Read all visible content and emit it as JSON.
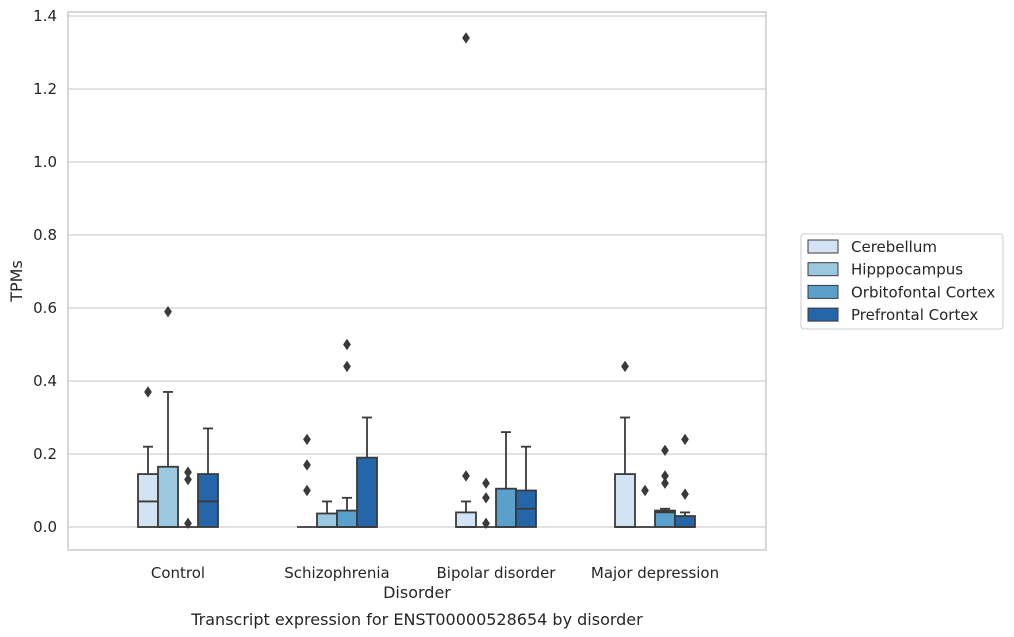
{
  "chart_data": {
    "type": "box",
    "xlabel": "Disorder",
    "ylabel": "TPMs",
    "caption": "Transcript expression for ENST00000528654 by disorder",
    "ylim": [
      -0.062,
      1.41
    ],
    "yticks": [
      0.0,
      0.2,
      0.4,
      0.6,
      0.8,
      1.0,
      1.2,
      1.4
    ],
    "ytick_labels": [
      "0.0",
      "0.2",
      "0.4",
      "0.6",
      "0.8",
      "1.0",
      "1.2",
      "1.4"
    ],
    "grid": "horizontal",
    "legend_position": "right",
    "categories": [
      "Control",
      "Schizophrenia",
      "Bipolar disorder",
      "Major depression"
    ],
    "series": [
      {
        "name": "Cerebellum",
        "color": "#d2e3f3",
        "boxes": [
          {
            "q1": 0.0,
            "median": 0.07,
            "q3": 0.145,
            "whisker_low": 0.0,
            "whisker_high": 0.22,
            "outliers": [
              0.37
            ]
          },
          {
            "q1": 0.0,
            "median": 0.0,
            "q3": 0.0,
            "whisker_low": 0.0,
            "whisker_high": 0.0,
            "outliers": [
              0.24,
              0.17,
              0.1
            ]
          },
          {
            "q1": 0.0,
            "median": 0.0,
            "q3": 0.04,
            "whisker_low": 0.0,
            "whisker_high": 0.07,
            "outliers": [
              1.34,
              0.14
            ]
          },
          {
            "q1": 0.0,
            "median": 0.0,
            "q3": 0.145,
            "whisker_low": 0.0,
            "whisker_high": 0.3,
            "outliers": [
              0.44
            ]
          }
        ]
      },
      {
        "name": "Hipppocampus",
        "color": "#9ac8e0",
        "boxes": [
          {
            "q1": 0.0,
            "median": 0.0,
            "q3": 0.165,
            "whisker_low": 0.0,
            "whisker_high": 0.37,
            "outliers": [
              0.59
            ]
          },
          {
            "q1": 0.0,
            "median": 0.0,
            "q3": 0.037,
            "whisker_low": 0.0,
            "whisker_high": 0.07,
            "outliers": []
          },
          {
            "q1": 0.0,
            "median": 0.0,
            "q3": 0.0,
            "whisker_low": 0.0,
            "whisker_high": 0.0,
            "outliers": [
              0.12,
              0.08,
              0.01
            ]
          },
          {
            "q1": 0.0,
            "median": 0.0,
            "q3": 0.0,
            "whisker_low": 0.0,
            "whisker_high": 0.0,
            "outliers": [
              0.1
            ]
          }
        ]
      },
      {
        "name": "Orbitofontal Cortex",
        "color": "#5aa0cd",
        "boxes": [
          {
            "q1": 0.0,
            "median": 0.0,
            "q3": 0.0,
            "whisker_low": 0.0,
            "whisker_high": 0.0,
            "outliers": [
              0.15,
              0.13,
              0.01
            ]
          },
          {
            "q1": 0.0,
            "median": 0.0,
            "q3": 0.045,
            "whisker_low": 0.0,
            "whisker_high": 0.08,
            "outliers": [
              0.5,
              0.44
            ]
          },
          {
            "q1": 0.0,
            "median": 0.0,
            "q3": 0.105,
            "whisker_low": 0.0,
            "whisker_high": 0.26,
            "outliers": []
          },
          {
            "q1": 0.0,
            "median": 0.04,
            "q3": 0.045,
            "whisker_low": 0.0,
            "whisker_high": 0.05,
            "outliers": [
              0.21,
              0.14,
              0.12
            ]
          }
        ]
      },
      {
        "name": "Prefrontal Cortex",
        "color": "#2566a8",
        "boxes": [
          {
            "q1": 0.0,
            "median": 0.07,
            "q3": 0.145,
            "whisker_low": 0.0,
            "whisker_high": 0.27,
            "outliers": []
          },
          {
            "q1": 0.0,
            "median": 0.0,
            "q3": 0.19,
            "whisker_low": 0.0,
            "whisker_high": 0.3,
            "outliers": []
          },
          {
            "q1": 0.0,
            "median": 0.05,
            "q3": 0.1,
            "whisker_low": 0.0,
            "whisker_high": 0.22,
            "outliers": []
          },
          {
            "q1": 0.0,
            "median": 0.0,
            "q3": 0.03,
            "whisker_low": 0.0,
            "whisker_high": 0.04,
            "outliers": [
              0.24,
              0.09
            ]
          }
        ]
      }
    ]
  }
}
